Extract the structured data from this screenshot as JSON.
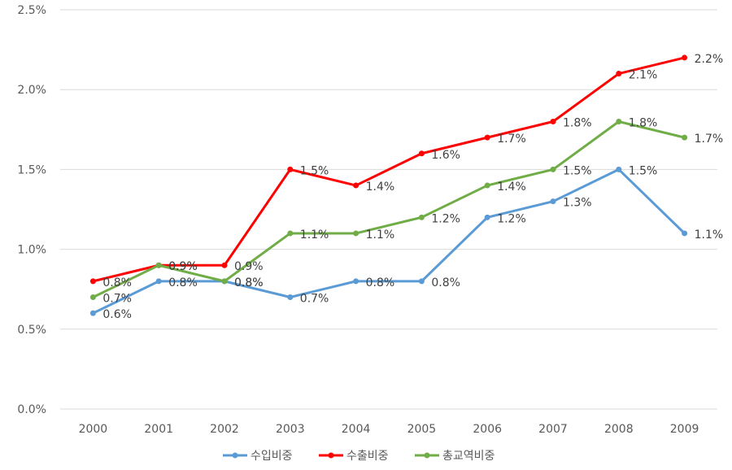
{
  "chart_data": {
    "type": "line",
    "title": "",
    "xlabel": "",
    "ylabel": "",
    "categories": [
      "2000",
      "2001",
      "2002",
      "2003",
      "2004",
      "2005",
      "2006",
      "2007",
      "2008",
      "2009"
    ],
    "ylim": [
      0,
      2.5
    ],
    "yticks": [
      "0.0%",
      "0.5%",
      "1.0%",
      "1.5%",
      "2.0%",
      "2.5%"
    ],
    "ytick_values": [
      0,
      0.5,
      1.0,
      1.5,
      2.0,
      2.5
    ],
    "grid": true,
    "legend_position": "bottom",
    "series": [
      {
        "name": "수입비중",
        "color": "#5b9bd5",
        "values": [
          0.6,
          0.8,
          0.8,
          0.7,
          0.8,
          0.8,
          1.2,
          1.3,
          1.5,
          1.1
        ],
        "labels": [
          "0.6%",
          "0.8%",
          "0.8%",
          "0.7%",
          "0.8%",
          "0.8%",
          "1.2%",
          "1.3%",
          "1.5%",
          "1.1%"
        ]
      },
      {
        "name": "수출비중",
        "color": "#ff0000",
        "values": [
          0.8,
          0.9,
          0.9,
          1.5,
          1.4,
          1.6,
          1.7,
          1.8,
          2.1,
          2.2
        ],
        "labels": [
          "0.8%",
          "0.9%",
          "0.9%",
          "1.5%",
          "1.4%",
          "1.6%",
          "1.7%",
          "1.8%",
          "2.1%",
          "2.2%"
        ]
      },
      {
        "name": "총교역비중",
        "color": "#70ad47",
        "values": [
          0.7,
          0.9,
          0.8,
          1.1,
          1.1,
          1.2,
          1.4,
          1.5,
          1.8,
          1.7
        ],
        "labels": [
          "0.7%",
          "0.9%",
          "0.8%",
          "1.1%",
          "1.1%",
          "1.2%",
          "1.4%",
          "1.5%",
          "1.8%",
          "1.7%"
        ]
      }
    ]
  }
}
